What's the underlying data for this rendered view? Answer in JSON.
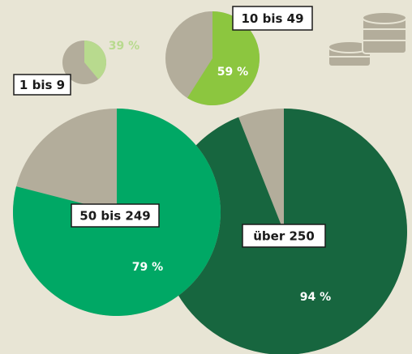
{
  "chart_data": [
    {
      "type": "pie",
      "title": "1 bis 9",
      "values": [
        39
      ],
      "value_labels": [
        "39 %"
      ],
      "color": "#b8da8e",
      "rest_color": "#b3ad9b"
    },
    {
      "type": "pie",
      "title": "10 bis 49",
      "values": [
        59
      ],
      "value_labels": [
        "59 %"
      ],
      "color": "#8cc63f",
      "rest_color": "#b3ad9b"
    },
    {
      "type": "pie",
      "title": "über 250",
      "values": [
        94
      ],
      "value_labels": [
        "94 %"
      ],
      "color": "#17663f",
      "rest_color": "#b3ad9b"
    },
    {
      "type": "pie",
      "title": "50 bis 249",
      "values": [
        79
      ],
      "value_labels": [
        "79 %"
      ],
      "color": "#00a865",
      "rest_color": "#b3ad9b"
    }
  ]
}
